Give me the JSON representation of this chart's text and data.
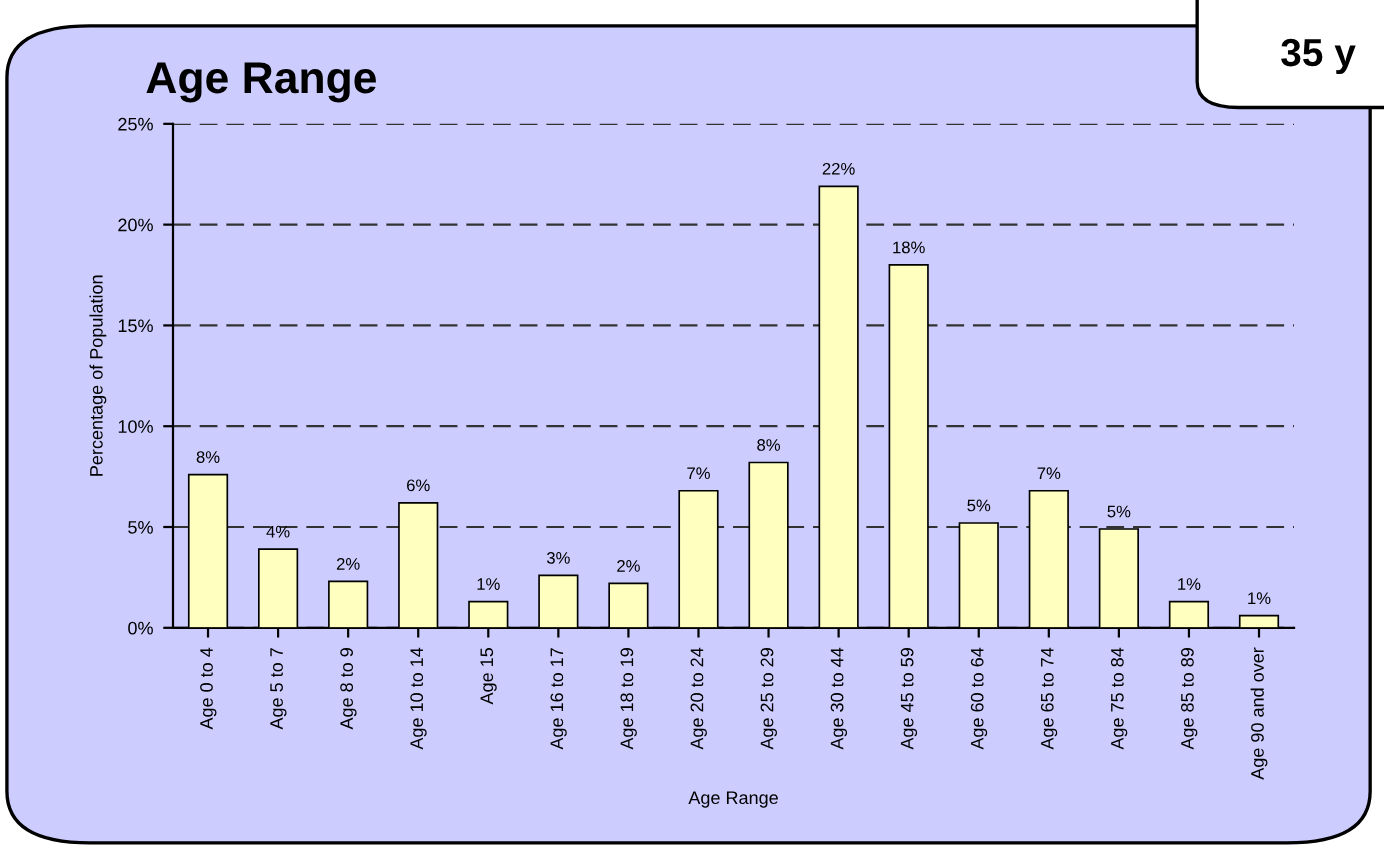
{
  "chart_data": {
    "type": "bar",
    "title": "Age Range",
    "xlabel": "Age Range",
    "ylabel": "Percentage of Population",
    "categories": [
      "Age 0 to 4",
      "Age 5 to 7",
      "Age 8 to 9",
      "Age 10 to 14",
      "Age 15",
      "Age 16 to 17",
      "Age 18 to 19",
      "Age 20 to 24",
      "Age 25 to 29",
      "Age 30 to 44",
      "Age 45 to 59",
      "Age 60 to 64",
      "Age 65 to 74",
      "Age 75 to 84",
      "Age 85 to 89",
      "Age 90 and over"
    ],
    "values": [
      7.6,
      3.9,
      2.3,
      6.2,
      1.3,
      2.6,
      2.2,
      6.8,
      8.2,
      21.9,
      18.0,
      5.2,
      6.8,
      4.9,
      1.3,
      0.6
    ],
    "value_labels": [
      "8%",
      "4%",
      "2%",
      "6%",
      "1%",
      "3%",
      "2%",
      "7%",
      "8%",
      "22%",
      "18%",
      "5%",
      "7%",
      "5%",
      "1%",
      "1%"
    ],
    "color": "#ffffc0",
    "ylim": [
      0,
      25
    ],
    "yticks": [
      {
        "value": 0,
        "label": "0%"
      },
      {
        "value": 5,
        "label": "5%"
      },
      {
        "value": 10,
        "label": "10%"
      },
      {
        "value": 15,
        "label": "15%"
      },
      {
        "value": 20,
        "label": "20%"
      },
      {
        "value": 25,
        "label": "25%"
      }
    ],
    "grid": "y",
    "legend": false,
    "annotations": [
      "35 y"
    ]
  }
}
